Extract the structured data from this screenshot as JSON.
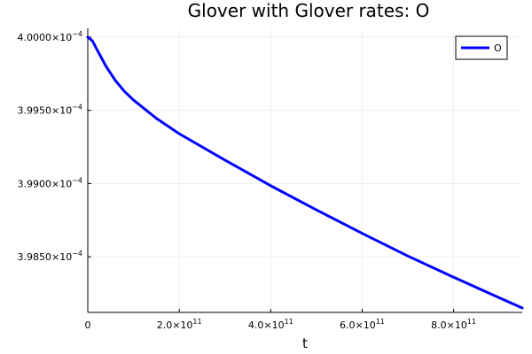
{
  "chart_data": {
    "type": "line",
    "title": "Glover with Glover rates: O",
    "xlabel": "t",
    "ylabel": "",
    "xlim": [
      0,
      950000000000.0
    ],
    "ylim": [
      0.00039812,
      0.00040006
    ],
    "grid": true,
    "legend_position": "top-right",
    "x_ticks": [
      {
        "value": 0,
        "mantissa": "0",
        "exponent": ""
      },
      {
        "value": 200000000000.0,
        "mantissa": "2.0×10",
        "exponent": "11"
      },
      {
        "value": 400000000000.0,
        "mantissa": "4.0×10",
        "exponent": "11"
      },
      {
        "value": 600000000000.0,
        "mantissa": "6.0×10",
        "exponent": "11"
      },
      {
        "value": 800000000000.0,
        "mantissa": "8.0×10",
        "exponent": "11"
      }
    ],
    "y_ticks": [
      {
        "value": 0.0003985,
        "mantissa": "3.9850×10",
        "exponent": "−4"
      },
      {
        "value": 0.000399,
        "mantissa": "3.9900×10",
        "exponent": "−4"
      },
      {
        "value": 0.0003995,
        "mantissa": "3.9950×10",
        "exponent": "−4"
      },
      {
        "value": 0.0004,
        "mantissa": "4.0000×10",
        "exponent": "−4"
      }
    ],
    "series": [
      {
        "name": "O",
        "color": "#0000ff",
        "x": [
          0,
          10000000000.0,
          20000000000.0,
          40000000000.0,
          60000000000.0,
          80000000000.0,
          100000000000.0,
          150000000000.0,
          200000000000.0,
          300000000000.0,
          400000000000.0,
          500000000000.0,
          600000000000.0,
          700000000000.0,
          800000000000.0,
          900000000000.0,
          950000000000.0
        ],
        "y": [
          0.0004,
          0.000399975,
          0.000399915,
          0.0003998,
          0.000399705,
          0.00039963,
          0.00039957,
          0.000399445,
          0.00039934,
          0.00039916,
          0.000398985,
          0.00039882,
          0.00039866,
          0.000398505,
          0.00039836,
          0.00039822,
          0.00039815
        ]
      }
    ]
  }
}
